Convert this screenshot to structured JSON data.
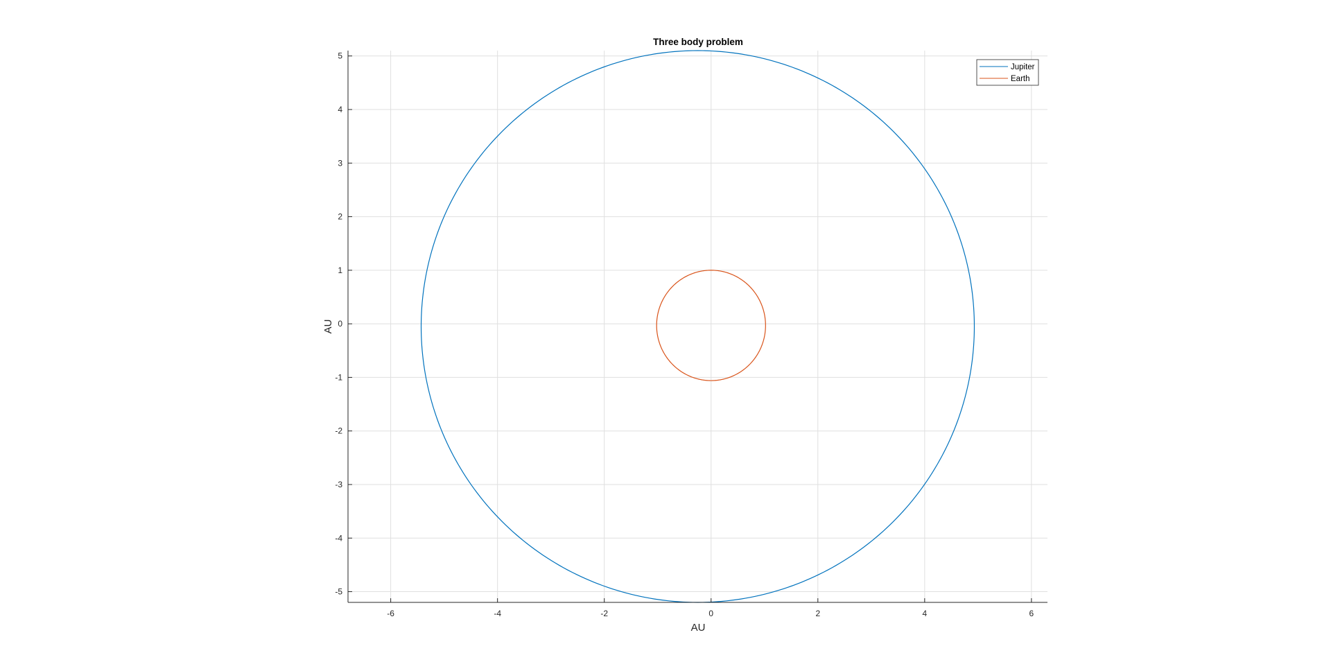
{
  "chart_data": {
    "type": "line",
    "title": "Three body problem",
    "xlabel": "AU",
    "ylabel": "AU",
    "xlim": [
      -6.8,
      6.3
    ],
    "ylim": [
      -5.2,
      5.1
    ],
    "xticks": [
      -6,
      -4,
      -2,
      0,
      2,
      4,
      6
    ],
    "yticks": [
      -5,
      -4,
      -3,
      -2,
      -1,
      0,
      1,
      2,
      3,
      4,
      5
    ],
    "xtick_labels": [
      "-6",
      "-4",
      "-2",
      "0",
      "2",
      "4",
      "6"
    ],
    "ytick_labels": [
      "-5",
      "-4",
      "-3",
      "-2",
      "-1",
      "0",
      "1",
      "2",
      "3",
      "4",
      "5"
    ],
    "grid": true,
    "legend_position": "top-right",
    "series": [
      {
        "name": "Jupiter",
        "color": "#0072BD",
        "shape": "closed orbit",
        "center": [
          -0.25,
          -0.05
        ],
        "radius": [
          5.18,
          5.15
        ]
      },
      {
        "name": "Earth",
        "color": "#D95319",
        "shape": "closed orbit",
        "center": [
          0.0,
          -0.03
        ],
        "radius": [
          1.02,
          1.03
        ]
      }
    ]
  }
}
